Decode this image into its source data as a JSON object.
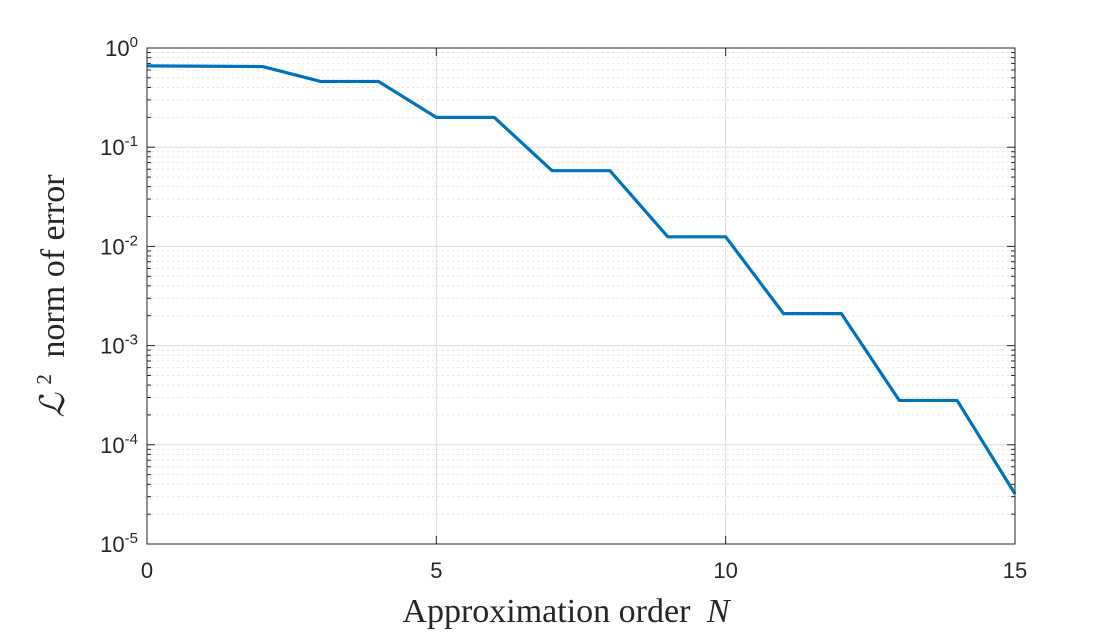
{
  "chart_data": {
    "type": "line",
    "title": "",
    "xlabel": "Approximation order",
    "xlabel_var": "N",
    "ylabel": "norm of error",
    "ylabel_symbol": "ℒ",
    "ylabel_sup": "2",
    "xlim": [
      0,
      15
    ],
    "ylim": [
      1e-05,
      1
    ],
    "yscale": "log",
    "grid": "major and minor",
    "xticks": [
      0,
      5,
      10,
      15
    ],
    "xtick_labels": [
      "0",
      "5",
      "10",
      "15"
    ],
    "yticks": [
      1e-05,
      0.0001,
      0.001,
      0.01,
      0.1,
      1
    ],
    "ytick_labels": [
      {
        "base": "10",
        "exp": "-5"
      },
      {
        "base": "10",
        "exp": "-4"
      },
      {
        "base": "10",
        "exp": "-3"
      },
      {
        "base": "10",
        "exp": "-2"
      },
      {
        "base": "10",
        "exp": "-1"
      },
      {
        "base": "10",
        "exp": "0"
      }
    ],
    "series": [
      {
        "color": "#0072bd",
        "x": [
          0,
          2,
          3,
          4,
          5,
          6,
          7,
          8,
          9,
          10,
          11,
          12,
          13,
          14,
          15
        ],
        "y": [
          0.66,
          0.65,
          0.46,
          0.46,
          0.2,
          0.2,
          0.058,
          0.058,
          0.0125,
          0.0125,
          0.0021,
          0.0021,
          0.00028,
          0.00028,
          3.2e-05
        ]
      }
    ]
  }
}
